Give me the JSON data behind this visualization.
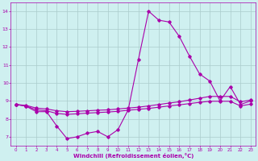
{
  "background_color": "#cff0f0",
  "grid_color": "#aacccc",
  "line_color": "#aa00aa",
  "xlabel": "Windchill (Refroidissement éolien,°C)",
  "xlim_min": -0.5,
  "xlim_max": 23.5,
  "ylim_min": 6.5,
  "ylim_max": 14.5,
  "yticks": [
    7,
    8,
    9,
    10,
    11,
    12,
    13,
    14
  ],
  "xticks": [
    0,
    1,
    2,
    3,
    4,
    5,
    6,
    7,
    8,
    9,
    10,
    11,
    12,
    13,
    14,
    15,
    16,
    17,
    18,
    19,
    20,
    21,
    22,
    23
  ],
  "lines": [
    {
      "x": [
        0,
        1,
        2,
        3,
        4,
        5,
        6,
        7,
        8,
        9,
        10,
        11,
        12,
        13,
        14,
        15,
        16,
        17,
        18,
        19,
        20,
        21,
        22,
        23
      ],
      "y": [
        8.8,
        8.7,
        8.4,
        8.4,
        7.6,
        6.9,
        7.0,
        7.2,
        7.3,
        7.0,
        7.4,
        8.5,
        11.3,
        14.0,
        13.5,
        13.4,
        12.6,
        11.5,
        10.5,
        10.1,
        9.0,
        9.8,
        8.8,
        9.0
      ]
    },
    {
      "x": [
        0,
        1,
        2,
        3,
        4,
        5,
        6,
        7,
        8,
        9,
        10,
        11,
        12,
        13,
        14,
        15,
        16,
        17,
        18,
        19,
        20,
        21,
        22,
        23
      ],
      "y": [
        8.8,
        8.75,
        8.6,
        8.55,
        8.45,
        8.4,
        8.42,
        8.45,
        8.48,
        8.5,
        8.55,
        8.6,
        8.65,
        8.72,
        8.8,
        8.88,
        8.95,
        9.05,
        9.15,
        9.25,
        9.25,
        9.25,
        8.95,
        9.05
      ]
    },
    {
      "x": [
        0,
        1,
        2,
        3,
        4,
        5,
        6,
        7,
        8,
        9,
        10,
        11,
        12,
        13,
        14,
        15,
        16,
        17,
        18,
        19,
        20,
        21,
        22,
        23
      ],
      "y": [
        8.8,
        8.72,
        8.5,
        8.45,
        8.3,
        8.25,
        8.28,
        8.32,
        8.35,
        8.38,
        8.42,
        8.48,
        8.53,
        8.58,
        8.65,
        8.72,
        8.78,
        8.85,
        8.92,
        8.98,
        8.98,
        8.98,
        8.72,
        8.82
      ]
    }
  ]
}
